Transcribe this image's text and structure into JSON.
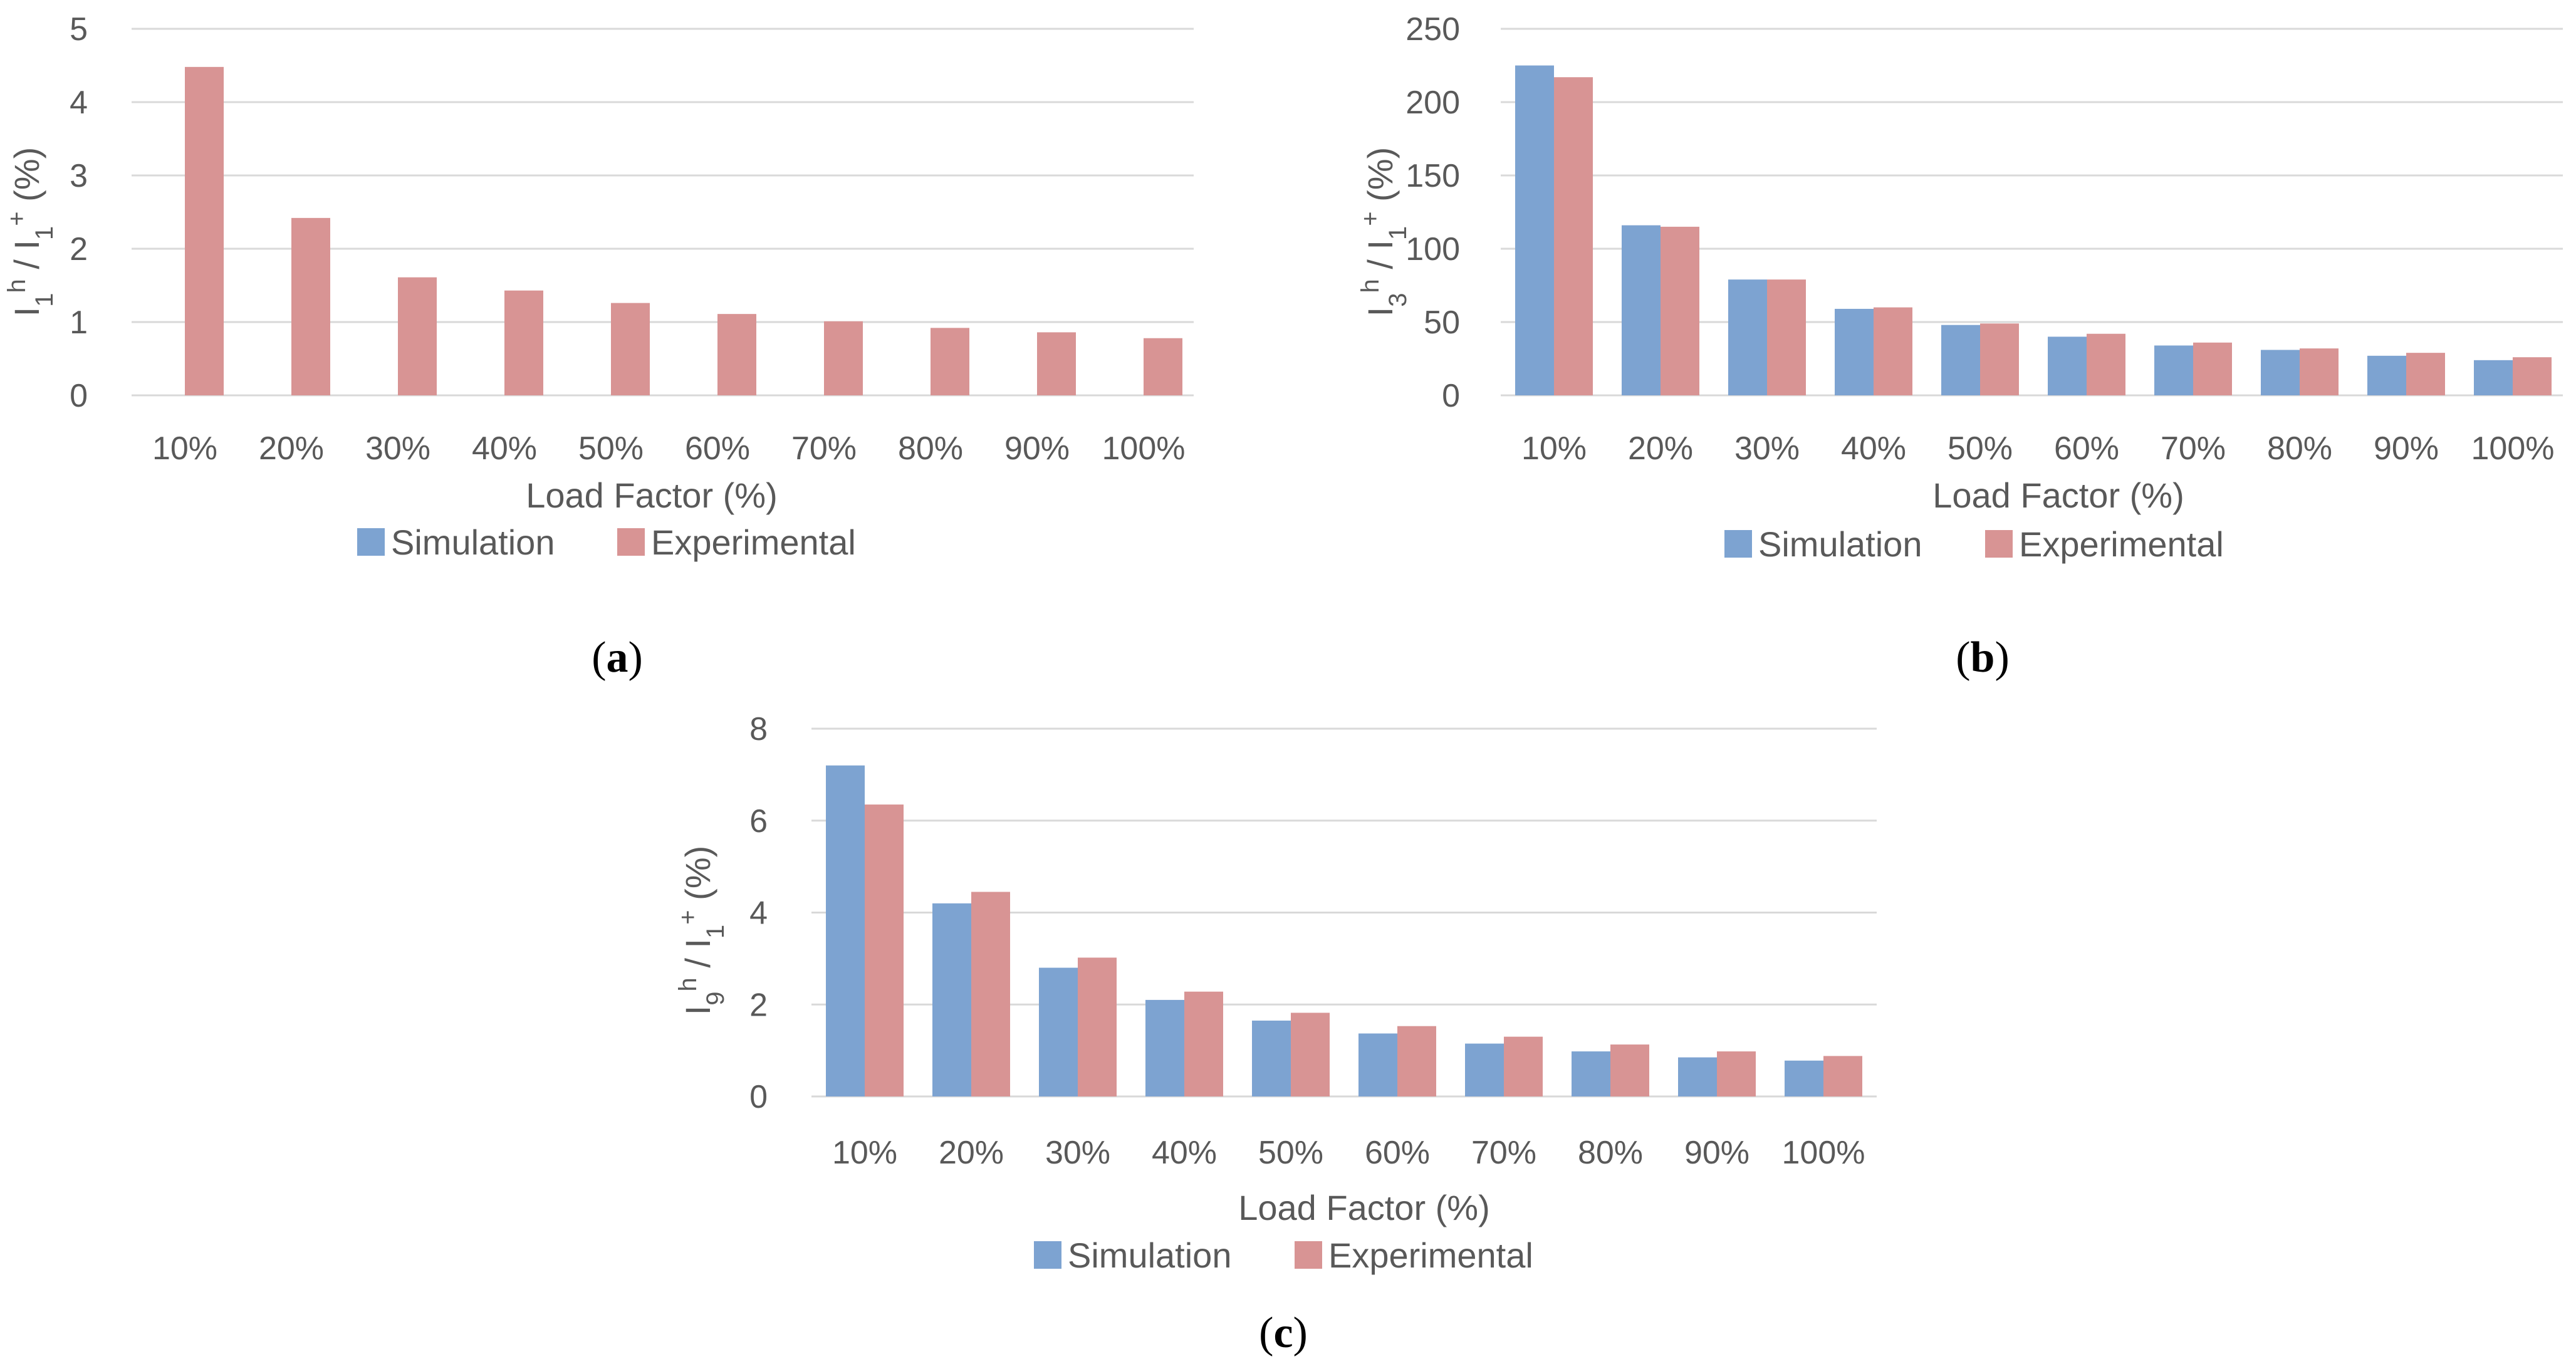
{
  "colors": {
    "simulation": "#7DA3D1",
    "experimental": "#D89494",
    "grid": "#D9D9D9",
    "text": "#595959"
  },
  "chart_data": [
    {
      "panel": "a",
      "type": "bar",
      "caption": "a",
      "categories": [
        "10%",
        "20%",
        "30%",
        "40%",
        "50%",
        "60%",
        "70%",
        "80%",
        "90%",
        "100%"
      ],
      "series": [
        {
          "name": "Simulation",
          "values": [
            0,
            0,
            0,
            0,
            0,
            0,
            0,
            0,
            0,
            0
          ]
        },
        {
          "name": "Experimental",
          "values": [
            4.48,
            2.42,
            1.61,
            1.43,
            1.26,
            1.11,
            1.01,
            0.92,
            0.86,
            0.78
          ]
        }
      ],
      "xlabel": "Load Factor (%)",
      "ylabel": {
        "base": "I",
        "sub1": "1",
        "sup1": "h",
        "mid": " / I",
        "sub2": "1",
        "sup2": "+",
        "tail": " (%)"
      },
      "ylim": [
        0,
        5
      ],
      "yticks": [
        "0",
        "1",
        "2",
        "3",
        "4",
        "5"
      ]
    },
    {
      "panel": "b",
      "type": "bar",
      "caption": "b",
      "categories": [
        "10%",
        "20%",
        "30%",
        "40%",
        "50%",
        "60%",
        "70%",
        "80%",
        "90%",
        "100%"
      ],
      "series": [
        {
          "name": "Simulation",
          "values": [
            225,
            116,
            79,
            59,
            48,
            40,
            34,
            31,
            27,
            24
          ]
        },
        {
          "name": "Experimental",
          "values": [
            217,
            115,
            79,
            60,
            49,
            42,
            36,
            32,
            29,
            26
          ]
        }
      ],
      "xlabel": "Load Factor (%)",
      "ylabel": {
        "base": "I",
        "sub1": "3",
        "sup1": "h",
        "mid": " / I",
        "sub2": "1",
        "sup2": "+",
        "tail": " (%)"
      },
      "ylim": [
        0,
        250
      ],
      "yticks": [
        "0",
        "50",
        "100",
        "150",
        "200",
        "250"
      ]
    },
    {
      "panel": "c",
      "type": "bar",
      "caption": "c",
      "categories": [
        "10%",
        "20%",
        "30%",
        "40%",
        "50%",
        "60%",
        "70%",
        "80%",
        "90%",
        "100%"
      ],
      "series": [
        {
          "name": "Simulation",
          "values": [
            7.2,
            4.2,
            2.8,
            2.1,
            1.65,
            1.37,
            1.15,
            0.98,
            0.85,
            0.78
          ]
        },
        {
          "name": "Experimental",
          "values": [
            6.35,
            4.45,
            3.02,
            2.28,
            1.82,
            1.53,
            1.3,
            1.13,
            0.98,
            0.88
          ]
        }
      ],
      "xlabel": "Load Factor (%)",
      "ylabel": {
        "base": "I",
        "sub1": "9",
        "sup1": "h",
        "mid": " / I",
        "sub2": "1",
        "sup2": "+",
        "tail": " (%)"
      },
      "ylim": [
        0,
        8
      ],
      "yticks": [
        "0",
        "2",
        "4",
        "6",
        "8"
      ]
    }
  ]
}
